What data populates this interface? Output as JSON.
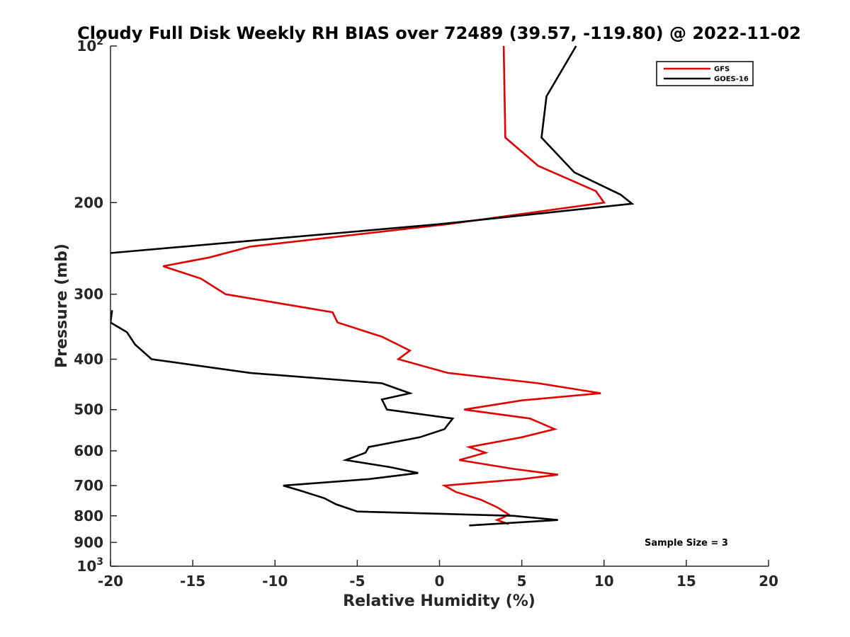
{
  "chart_data": {
    "type": "line",
    "title": "Cloudy Full Disk Weekly RH BIAS over 72489 (39.57, -119.80) @ 2022-11-02",
    "xlabel": "Relative Humidity (%)",
    "ylabel": "Pressure (mb)",
    "xlim": [
      -20,
      20
    ],
    "ylim": [
      100,
      1000
    ],
    "y_scale": "log",
    "y_reversed": true,
    "grid": false,
    "legend_position": "top-right",
    "x_ticks": [
      -20,
      -15,
      -10,
      -5,
      0,
      5,
      10,
      15,
      20
    ],
    "x_tick_labels": [
      "-20",
      "-15",
      "-10",
      "-5",
      "0",
      "5",
      "10",
      "15",
      "20"
    ],
    "y_ticks": [
      100,
      200,
      300,
      400,
      500,
      600,
      700,
      800,
      900,
      1000
    ],
    "y_tick_labels": [
      {
        "text": "10",
        "sup": "2"
      },
      {
        "text": "200",
        "sup": ""
      },
      {
        "text": "300",
        "sup": ""
      },
      {
        "text": "400",
        "sup": ""
      },
      {
        "text": "500",
        "sup": ""
      },
      {
        "text": "600",
        "sup": ""
      },
      {
        "text": "700",
        "sup": ""
      },
      {
        "text": "800",
        "sup": ""
      },
      {
        "text": "900",
        "sup": ""
      },
      {
        "text": "10",
        "sup": "3"
      }
    ],
    "annotation": "Sample Size = 3",
    "series": [
      {
        "name": "GFS",
        "color": "#e00000",
        "points": [
          [
            3.9,
            100
          ],
          [
            4.0,
            150
          ],
          [
            6.0,
            170
          ],
          [
            9.5,
            190
          ],
          [
            10.0,
            200
          ],
          [
            0.5,
            220
          ],
          [
            -11.5,
            243
          ],
          [
            -14.0,
            255
          ],
          [
            -16.8,
            265
          ],
          [
            -14.5,
            280
          ],
          [
            -13.0,
            300
          ],
          [
            -6.5,
            325
          ],
          [
            -6.2,
            340
          ],
          [
            -3.5,
            362
          ],
          [
            -1.8,
            385
          ],
          [
            -2.5,
            400
          ],
          [
            0.5,
            425
          ],
          [
            6.0,
            445
          ],
          [
            9.8,
            465
          ],
          [
            5.0,
            480
          ],
          [
            1.5,
            500
          ],
          [
            5.5,
            520
          ],
          [
            7.0,
            545
          ],
          [
            5.0,
            565
          ],
          [
            1.8,
            590
          ],
          [
            2.8,
            605
          ],
          [
            1.2,
            625
          ],
          [
            4.5,
            650
          ],
          [
            7.2,
            667
          ],
          [
            5.0,
            680
          ],
          [
            0.3,
            700
          ],
          [
            1.0,
            720
          ],
          [
            2.5,
            745
          ],
          [
            3.5,
            770
          ],
          [
            4.2,
            795
          ],
          [
            3.9,
            805
          ],
          [
            3.5,
            815
          ],
          [
            4.2,
            830
          ]
        ]
      },
      {
        "name": "GOES-16",
        "color": "#000000",
        "points": [
          [
            8.3,
            100
          ],
          [
            6.5,
            125
          ],
          [
            6.2,
            150
          ],
          [
            8.2,
            175
          ],
          [
            11.0,
            193
          ],
          [
            11.7,
            201
          ],
          [
            0,
            220
          ],
          [
            -20.0,
            250
          ],
          null,
          [
            -19.9,
            322
          ],
          [
            -20.0,
            340
          ],
          [
            -19.0,
            355
          ],
          [
            -18.5,
            375
          ],
          [
            -17.5,
            400
          ],
          [
            -11.5,
            425
          ],
          [
            -3.5,
            445
          ],
          [
            -1.8,
            465
          ],
          [
            -3.5,
            478
          ],
          [
            -3.2,
            500
          ],
          [
            0.8,
            520
          ],
          [
            0.3,
            545
          ],
          [
            -1.2,
            565
          ],
          [
            -4.3,
            590
          ],
          [
            -4.5,
            605
          ],
          [
            -5.7,
            625
          ],
          [
            -3.0,
            645
          ],
          [
            -1.3,
            662
          ],
          [
            -4.3,
            680
          ],
          [
            -9.5,
            700
          ],
          [
            -8.5,
            715
          ],
          [
            -7.0,
            740
          ],
          [
            -6.3,
            760
          ],
          [
            -5.0,
            785
          ],
          [
            4.5,
            800
          ],
          [
            7.2,
            815
          ],
          [
            1.8,
            835
          ]
        ]
      }
    ]
  }
}
